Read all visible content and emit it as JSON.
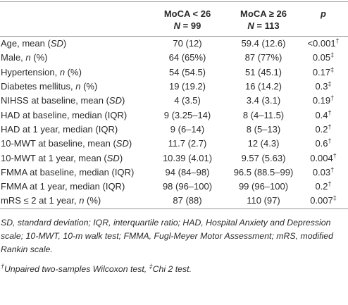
{
  "table": {
    "header": [
      {
        "line1": "MoCA < 26",
        "line2": [
          "N",
          " = 99"
        ]
      },
      {
        "line1": "MoCA ≥ 26",
        "line2": [
          "N",
          " = 113"
        ]
      },
      {
        "line1": "p"
      }
    ],
    "rows": [
      [
        [
          "Age, mean (",
          "SD",
          ")"
        ],
        "70 (12)",
        "59.4 (12.6)",
        [
          "<0.001",
          "†"
        ]
      ],
      [
        [
          "Male, ",
          "n",
          " (%)"
        ],
        "64 (65%)",
        "87 (77%)",
        [
          "0.05",
          "‡"
        ]
      ],
      [
        [
          "Hypertension, ",
          "n",
          " (%)"
        ],
        "54 (54.5)",
        "51 (45.1)",
        [
          "0.17",
          "‡"
        ]
      ],
      [
        [
          "Diabetes mellitus, ",
          "n",
          " (%)"
        ],
        "19 (19.2)",
        "16 (14.2)",
        [
          "0.3",
          "‡"
        ]
      ],
      [
        [
          "NIHSS at baseline, mean (",
          "SD",
          ")"
        ],
        "4 (3.5)",
        "3.4 (3.1)",
        [
          "0.19",
          "†"
        ]
      ],
      [
        [
          "HAD at baseline, median (IQR)"
        ],
        "9 (3.25–14)",
        "8 (4–11.5)",
        [
          "0.4",
          "†"
        ]
      ],
      [
        [
          "HAD at 1 year, median (IQR)"
        ],
        "9 (6–14)",
        "8 (5–13)",
        [
          "0.2",
          "†"
        ]
      ],
      [
        [
          "10-MWT at baseline, mean (",
          "SD",
          ")"
        ],
        "11.7 (2.7)",
        "12 (4.3)",
        [
          "0.6",
          "†"
        ]
      ],
      [
        [
          "10-MWT at 1 year, mean (",
          "SD",
          ")"
        ],
        "10.39 (4.01)",
        "9.57 (5.63)",
        [
          "0.004",
          "†"
        ]
      ],
      [
        [
          "FMMA at baseline, median (IQR)"
        ],
        "94 (84–98)",
        "96.5 (88.5–99)",
        [
          "0.03",
          "†"
        ]
      ],
      [
        [
          "FMMA at 1 year, median (IQR)"
        ],
        "98 (96–100)",
        "99 (96–100)",
        [
          "0.2",
          "†"
        ]
      ],
      [
        [
          "mRS ≤ 2 at 1 year, ",
          "n",
          " (%)"
        ],
        "87 (88)",
        "110 (97)",
        [
          "0.007",
          "‡"
        ]
      ]
    ]
  },
  "notes": {
    "abbreviations": "SD, standard deviation; IQR, interquartile ratio; HAD, Hospital Anxiety and Depression scale; 10-MWT, 10-m walk test; FMMA, Fugl-Meyer Motor Assessment; mRS, modified Rankin scale.",
    "tests": [
      "†",
      "Unpaired two-samples Wilcoxon test, ",
      "‡",
      "Chi 2 test."
    ]
  }
}
